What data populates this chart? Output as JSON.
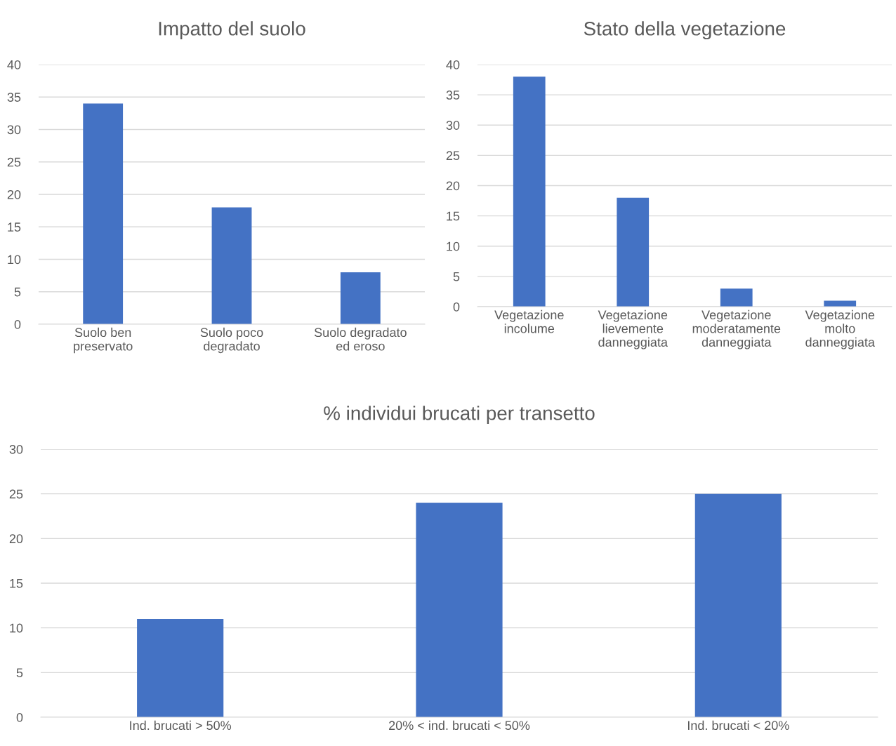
{
  "chart_data": [
    {
      "type": "bar",
      "title": "Impatto del suolo",
      "categories": [
        "Suolo ben\npreservato",
        "Suolo poco\ndegradato",
        "Suolo degradato\ned eroso"
      ],
      "values": [
        34,
        18,
        8
      ],
      "color": "#4472c4",
      "ylim": [
        0,
        40
      ],
      "yticks": [
        0,
        5,
        10,
        15,
        20,
        25,
        30,
        35,
        40
      ],
      "grid": "y",
      "legend": false
    },
    {
      "type": "bar",
      "title": "Stato della vegetazione",
      "categories": [
        "Vegetazione\nincolume",
        "Vegetazione\nlievemente\ndanneggiata",
        "Vegetazione\nmoderatamente\ndanneggiata",
        "Vegetazione\nmolto\ndanneggiata"
      ],
      "values": [
        38,
        18,
        3,
        1
      ],
      "color": "#4472c4",
      "ylim": [
        0,
        40
      ],
      "yticks": [
        0,
        5,
        10,
        15,
        20,
        25,
        30,
        35,
        40
      ],
      "grid": "y",
      "legend": false
    },
    {
      "type": "bar",
      "title": "% individui brucati per transetto",
      "categories": [
        "Ind. brucati > 50%",
        "20% < ind. brucati < 50%",
        "Ind. brucati < 20%"
      ],
      "values": [
        11,
        24,
        25
      ],
      "color": "#4472c4",
      "ylim": [
        0,
        30
      ],
      "yticks": [
        0,
        5,
        10,
        15,
        20,
        25,
        30
      ],
      "grid": "y",
      "legend": false
    }
  ]
}
